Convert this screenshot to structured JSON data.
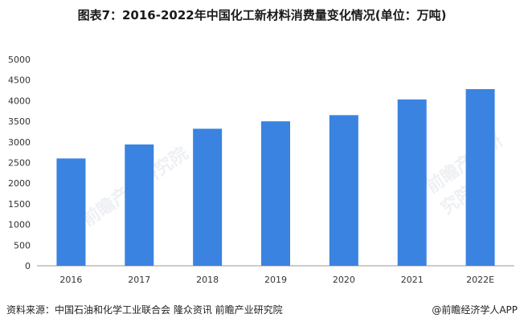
{
  "title": "图表7：2016-2022年中国化工新材料消费量变化情况(单位：万吨)",
  "source": "资料来源：中国石油和化学工业联合会 隆众资讯 前瞻产业研究院",
  "credit": "@前瞻经济学人APP",
  "watermark": "前瞻产业研究院",
  "colors": {
    "bar": "#3a83e0",
    "axis": "#999999",
    "text": "#333333"
  },
  "chart_data": {
    "type": "bar",
    "title": "图表7：2016-2022年中国化工新材料消费量变化情况(单位：万吨)",
    "categories": [
      "2016",
      "2017",
      "2018",
      "2019",
      "2020",
      "2021",
      "2022E"
    ],
    "values": [
      2600,
      2940,
      3320,
      3500,
      3650,
      4030,
      4280
    ],
    "ylim": [
      0,
      5000
    ],
    "yticks": [
      0,
      500,
      1000,
      1500,
      2000,
      2500,
      3000,
      3500,
      4000,
      4500,
      5000
    ],
    "xlabel": "",
    "ylabel": "",
    "grid": false,
    "legend": "none"
  }
}
